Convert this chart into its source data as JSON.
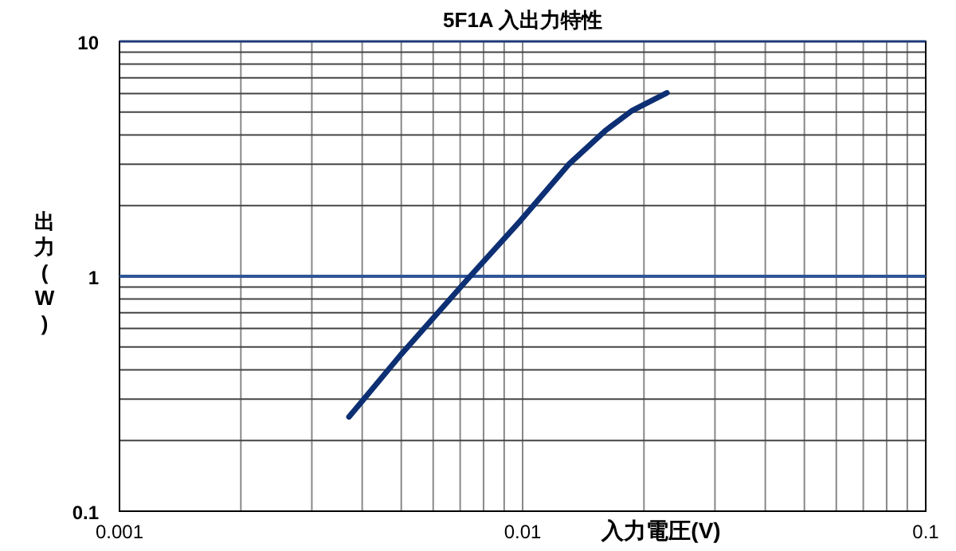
{
  "chart_data": {
    "type": "line",
    "title": "5F1A 入出力特性",
    "xlabel": "入力電圧(V)",
    "ylabel": "出力(W)",
    "log": "xy",
    "grid": true,
    "xlim": [
      0.001,
      0.1
    ],
    "xticks": [
      0.001,
      0.01,
      0.1
    ],
    "ylim": [
      0.1,
      10
    ],
    "yticks": [
      0.1,
      1,
      10
    ],
    "series": [
      {
        "color": "#0d2f73",
        "x": [
          0.00371,
          0.00499,
          0.00741,
          0.00989,
          0.013,
          0.0161,
          0.0187,
          0.0228
        ],
        "values": [
          0.252,
          0.464,
          1.0,
          1.73,
          2.99,
          4.19,
          5.08,
          6.04
        ]
      }
    ],
    "ref_lines": [
      {
        "axis": "y",
        "value": 1,
        "color": "#2e5597"
      }
    ],
    "marker": "none",
    "line_style": "solid"
  }
}
